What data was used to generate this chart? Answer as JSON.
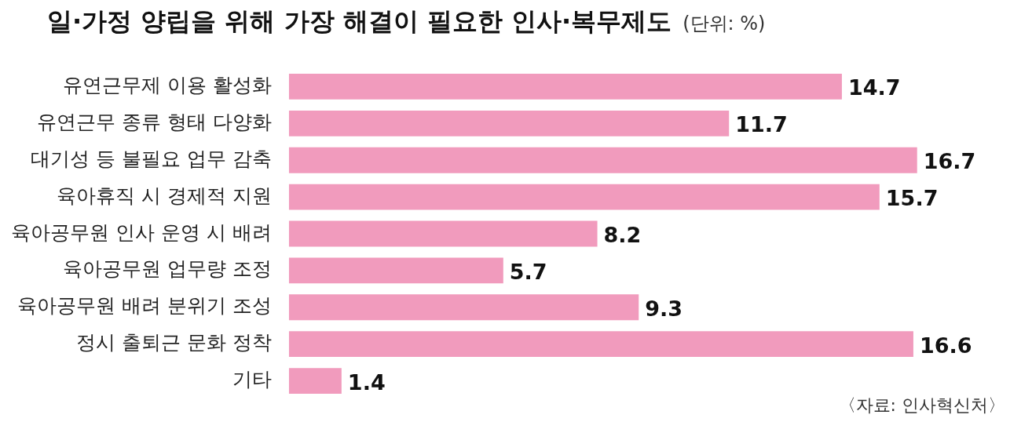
{
  "chart_data": {
    "type": "bar",
    "orientation": "horizontal",
    "title": "일·가정 양립을 위해 가장 해결이 필요한 인사·복무제도",
    "subtitle": "(단위: %)",
    "annotations": [
      "〈자료: 인사혁신처〉"
    ],
    "categories": [
      "유연근무제 이용 활성화",
      "유연근무 종류 형태 다양화",
      "대기성 등 불필요 업무 감축",
      "육아휴직 시 경제적 지원",
      "육아공무원 인사 운영 시 배려",
      "육아공무원 업무량 조정",
      "육아공무원 배려 분위기 조성",
      "정시 출퇴근 문화 정착",
      "기타"
    ],
    "values": [
      14.7,
      11.7,
      16.7,
      15.7,
      8.2,
      5.7,
      9.3,
      16.6,
      1.4
    ],
    "color": "#f19bbd",
    "data_labels": true
  }
}
